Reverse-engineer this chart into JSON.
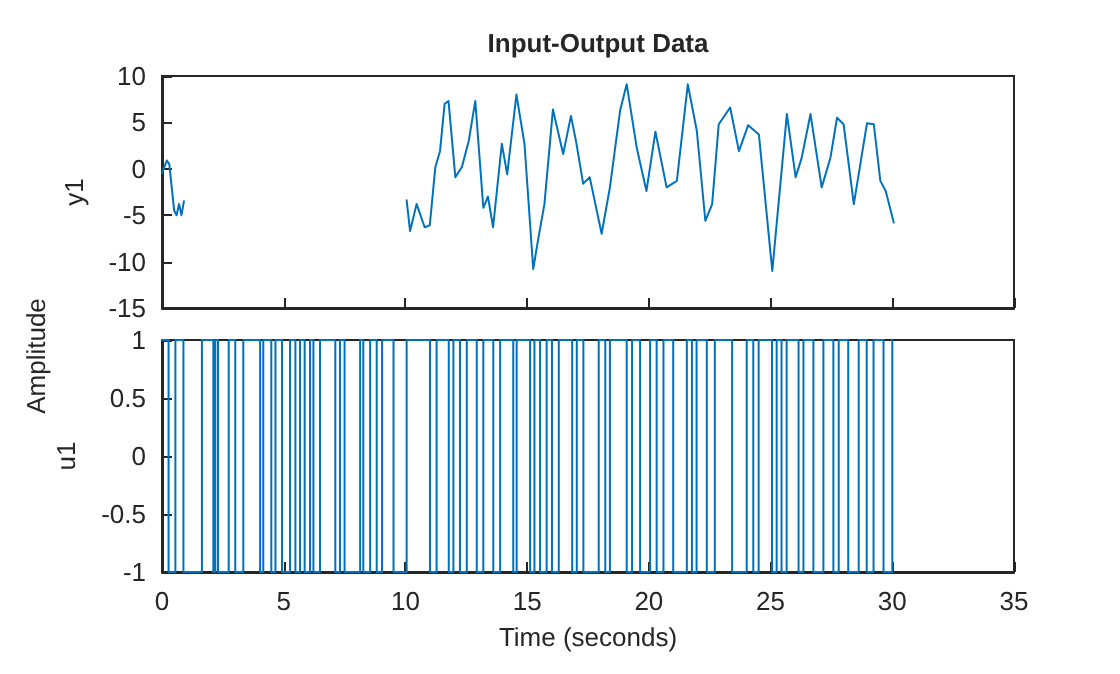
{
  "chart_data": [
    {
      "type": "line",
      "title": "Input-Output Data",
      "ylabel": "y1",
      "annotations": [
        "Amplitude"
      ],
      "xlim": [
        0,
        35
      ],
      "xticks": [
        0,
        5,
        10,
        15,
        20,
        25,
        30,
        35
      ],
      "ylim": [
        -15,
        10
      ],
      "yticks": [
        -15,
        -10,
        -5,
        0,
        5,
        10
      ],
      "tick_labels": "y",
      "grid": false,
      "marker": "none",
      "line_style": "solid",
      "series": [
        {
          "color": "#0072bd",
          "x": [
            0,
            0.2,
            0.3,
            0.5,
            0.6,
            0.7,
            0.8,
            0.9,
            5,
            10.05,
            10.19,
            10.46,
            10.79,
            11.0,
            11.23,
            11.42,
            11.61,
            11.77,
            12.05,
            12.32,
            12.6,
            12.87,
            13.2,
            13.39,
            13.6,
            13.96,
            14.18,
            14.56,
            14.89,
            15.25,
            15.44,
            15.71,
            16.06,
            16.26,
            16.48,
            16.8,
            17.02,
            17.3,
            17.57,
            18.06,
            18.4,
            18.82,
            19.09,
            19.5,
            19.9,
            20.27,
            20.73,
            21.15,
            21.6,
            21.97,
            22.32,
            22.6,
            22.87,
            23.34,
            23.7,
            24.08,
            24.52,
            25.07,
            25.67,
            26.03,
            26.28,
            26.64,
            27.1,
            27.46,
            27.73,
            28.0,
            28.42,
            28.96,
            29.24,
            29.51,
            29.73,
            30.06
          ],
          "values": [
            -0.5,
            0.9,
            0.5,
            -4.5,
            -5,
            -3.8,
            -5,
            -3.5,
            null,
            -3.4,
            -6.7,
            -3.8,
            -6.3,
            -6.1,
            0.2,
            1.9,
            7.0,
            7.3,
            -0.9,
            0.2,
            3.0,
            7.3,
            -4.2,
            -3.0,
            -6.3,
            2.7,
            -0.6,
            8.0,
            2.7,
            -10.8,
            -7.8,
            -3.8,
            6.4,
            4.1,
            1.6,
            5.7,
            2.8,
            -1.6,
            -0.9,
            -7.0,
            -2.0,
            6.3,
            9.1,
            2.3,
            -2.4,
            4.0,
            -2.0,
            -1.3,
            9.1,
            4.1,
            -5.6,
            -3.8,
            4.8,
            6.6,
            1.9,
            4.7,
            3.7,
            -11.0,
            5.9,
            -0.9,
            1.2,
            5.9,
            -2.0,
            1.2,
            5.5,
            4.8,
            -3.8,
            4.9,
            4.8,
            -1.3,
            -2.4,
            -5.8
          ]
        }
      ]
    },
    {
      "type": "step",
      "ylabel": "u1",
      "xlabel": "Time (seconds)",
      "xlim": [
        0,
        35
      ],
      "xticks": [
        0,
        5,
        10,
        15,
        20,
        25,
        30,
        35
      ],
      "ylim": [
        -1,
        1
      ],
      "yticks": [
        -1,
        -0.5,
        0,
        0.5,
        1
      ],
      "grid": false,
      "marker": "none",
      "line_style": "solid",
      "series": [
        {
          "color": "#0072bd",
          "x": [
            0,
            0.27,
            0.55,
            0.88,
            1.64,
            2.11,
            2.19,
            2.3,
            2.74,
            3.01,
            3.34,
            4.03,
            4.16,
            4.49,
            4.66,
            4.93,
            5.26,
            5.48,
            5.67,
            5.86,
            6.08,
            6.22,
            6.49,
            7.12,
            7.31,
            7.5,
            8.14,
            8.27,
            8.55,
            8.82,
            9.04,
            9.51,
            10.05,
            11.01,
            11.28,
            11.78,
            11.97,
            12.24,
            12.52,
            12.93,
            13.2,
            13.61,
            13.89,
            14.43,
            14.57,
            15.12,
            15.3,
            15.53,
            15.8,
            16.02,
            16.3,
            16.85,
            17.04,
            17.31,
            17.94,
            18.21,
            18.4,
            19.09,
            19.31,
            19.64,
            20.05,
            20.32,
            20.6,
            21.0,
            21.56,
            21.77,
            21.96,
            22.38,
            22.71,
            23.42,
            24.02,
            24.29,
            24.51,
            25.06,
            25.25,
            25.45,
            25.66,
            26.15,
            26.35,
            26.76,
            27.17,
            27.58,
            27.8,
            28.19,
            28.62,
            28.95,
            29.23,
            29.64,
            30.0
          ],
          "values": [
            1,
            -1,
            1,
            -1,
            1,
            -1,
            1,
            -1,
            1,
            -1,
            1,
            -1,
            1,
            -1,
            1,
            -1,
            1,
            -1,
            1,
            -1,
            1,
            -1,
            1,
            -1,
            1,
            -1,
            1,
            -1,
            1,
            -1,
            1,
            -1,
            1,
            -1,
            1,
            -1,
            1,
            -1,
            1,
            -1,
            1,
            -1,
            1,
            -1,
            1,
            -1,
            1,
            -1,
            1,
            -1,
            1,
            -1,
            1,
            -1,
            1,
            -1,
            1,
            -1,
            1,
            -1,
            1,
            -1,
            1,
            -1,
            1,
            -1,
            1,
            -1,
            1,
            -1,
            1,
            -1,
            1,
            -1,
            1,
            -1,
            1,
            -1,
            1,
            -1,
            1,
            -1,
            1,
            -1,
            1,
            -1,
            1,
            -1,
            1
          ]
        }
      ]
    }
  ]
}
